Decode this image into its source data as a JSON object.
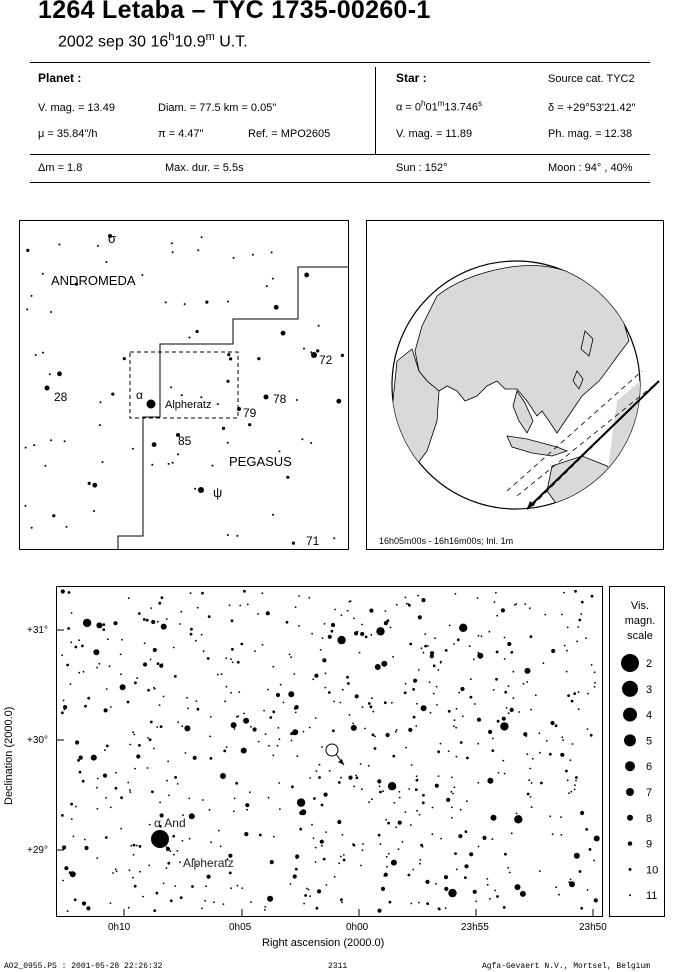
{
  "header": {
    "title": "1264 Letaba  –  TYC 1735-00260-1",
    "date_text": "2002 sep 30  16",
    "time_h": "h",
    "time_min": "10.9",
    "time_m": "m",
    "time_ut": " U.T."
  },
  "planet": {
    "heading": "Planet :",
    "vmag": "V. mag. = 13.49",
    "diam": "Diam. = 77.5 km = 0.05\"",
    "mu": "μ =  35.84\"/h",
    "pi": "π =  4.47\"",
    "ref": "Ref. = MPO2605"
  },
  "star": {
    "heading": "Star :",
    "source": "Source cat.  TYC2",
    "alpha_pre": "α =  0",
    "alpha_h": "h",
    "alpha_min": "01",
    "alpha_m": "m",
    "alpha_sec": "13.746",
    "alpha_s": "s",
    "delta": "δ = +29°53'21.42\"",
    "vmag": "V. mag. = 11.89",
    "phmag": "Ph. mag. = 12.38"
  },
  "summary": {
    "dm": "Δm = 1.8",
    "maxdur": "Max. dur. = 5.5s",
    "sun": "Sun : 152°",
    "moon": "Moon :  94° , 40%"
  },
  "finder": {
    "constellation_top": "ANDROMEDA",
    "constellation_bottom": "PEGASUS",
    "sigma": "σ",
    "alpha": "α",
    "alpheratz": "Alpheratz",
    "psi": "ψ",
    "n28": "28",
    "n72": "72",
    "n78": "78",
    "n79": "79",
    "n85": "85",
    "n71": "71"
  },
  "globe": {
    "caption": "16h05m00s - 16h16m00s; Inl.  1m"
  },
  "chart": {
    "y_axis_label": "Declination (2000.0)",
    "x_axis_label": "Right ascension (2000.0)",
    "y_ticks": [
      "+31°",
      "+30°",
      "+29°"
    ],
    "x_ticks": [
      "0h10",
      "0h05",
      "0h00",
      "23h55",
      "23h50"
    ],
    "alpha_and": "α And",
    "alpheratz": "Alpheratz"
  },
  "scale": {
    "title_line1": "Vis.",
    "title_line2": "magn.",
    "title_line3": "scale",
    "mags": [
      "2",
      "3",
      "4",
      "5",
      "6",
      "7",
      "8",
      "9",
      "10",
      "11"
    ]
  },
  "footer": {
    "left": "AO2_0955.PS : 2001-05-28 22:26:32",
    "center": "2311",
    "right": "Agfa-Gevaert N.V., Mortsel, Belgium"
  },
  "colors": {
    "land": "#d9d9d9",
    "ink": "#000000"
  }
}
